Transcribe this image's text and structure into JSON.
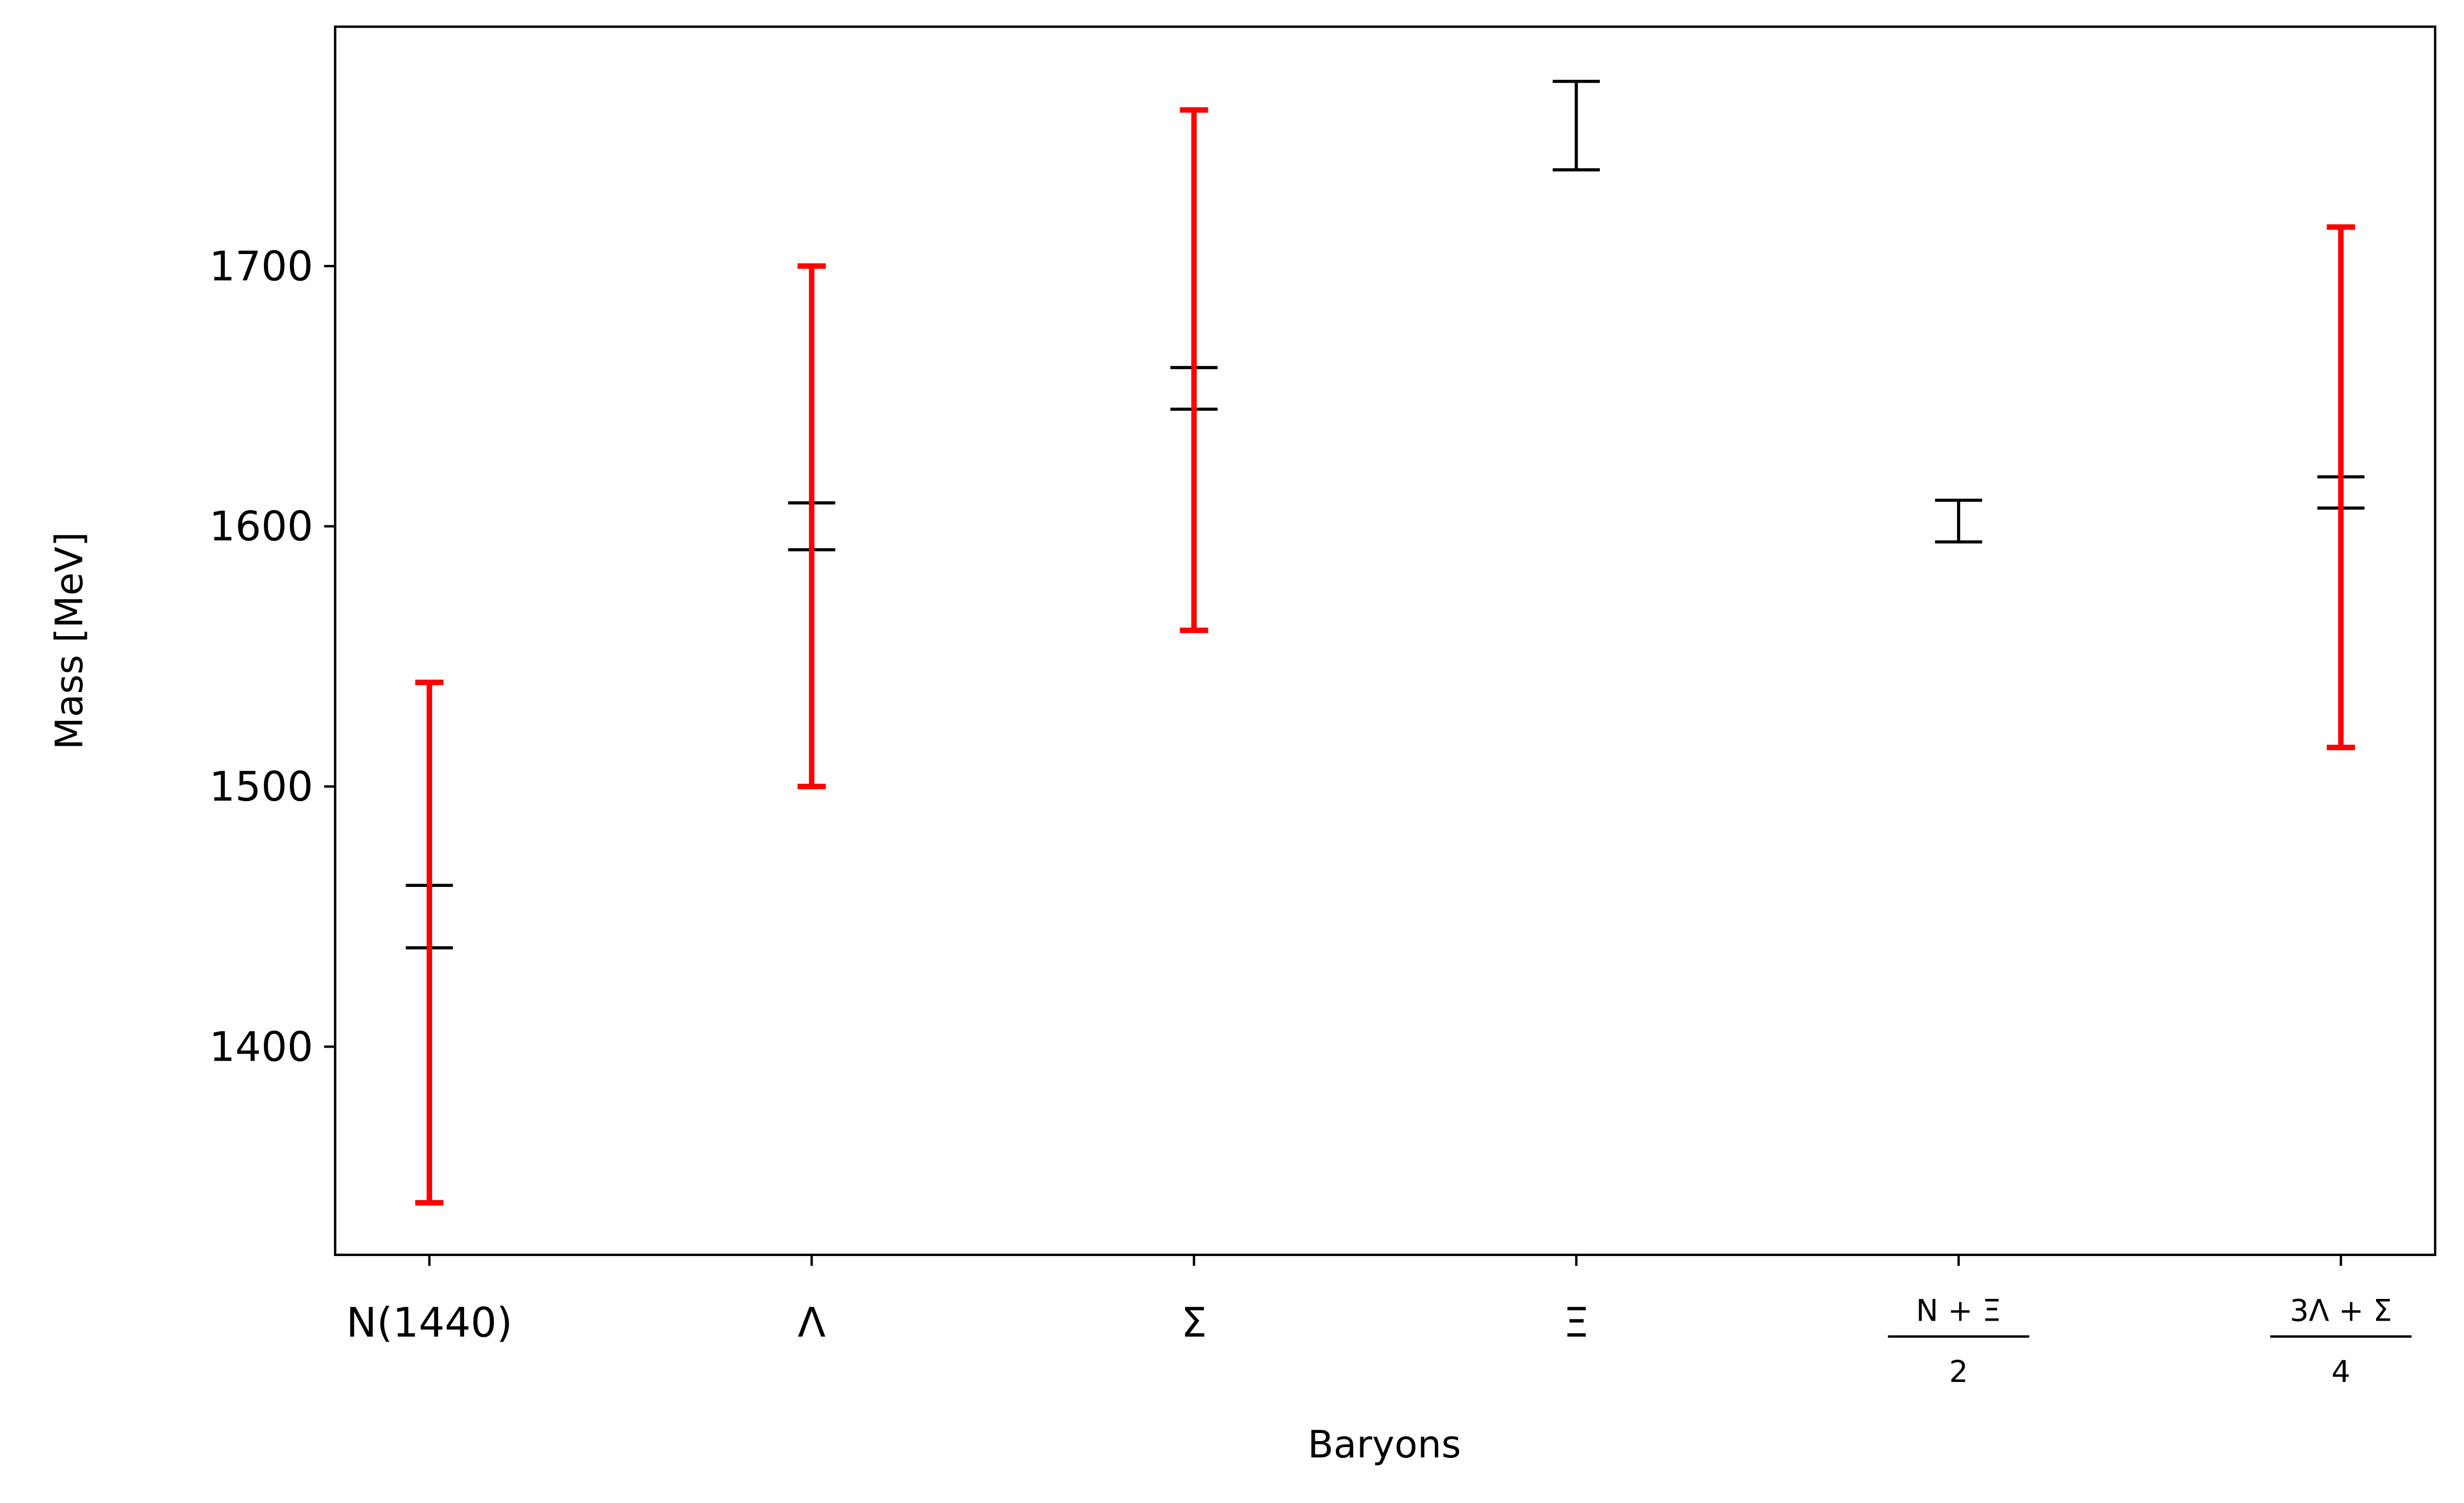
{
  "chart_data": {
    "type": "errorbar",
    "categories": [
      "N(1440)",
      "Λ",
      "Σ",
      "Ξ",
      {
        "numerator": "N + Ξ",
        "denominator": "2"
      },
      {
        "numerator": "3Λ + Σ",
        "denominator": "4"
      }
    ],
    "series": [
      {
        "color": "#000000",
        "values": [
          1450,
          1600,
          1653,
          1754,
          1602,
          1613
        ],
        "errors": [
          12,
          9,
          8,
          17,
          8,
          6
        ]
      },
      {
        "color": "#ff0000",
        "values": [
          1440,
          1600,
          1660,
          null,
          null,
          1615
        ],
        "errors": [
          100,
          100,
          100,
          null,
          null,
          100
        ]
      }
    ],
    "xlabel": "Baryons",
    "ylabel": "Mass [MeV]",
    "ylim": [
      1320,
      1792
    ],
    "yticks": [
      1400,
      1500,
      1600,
      1700
    ]
  }
}
